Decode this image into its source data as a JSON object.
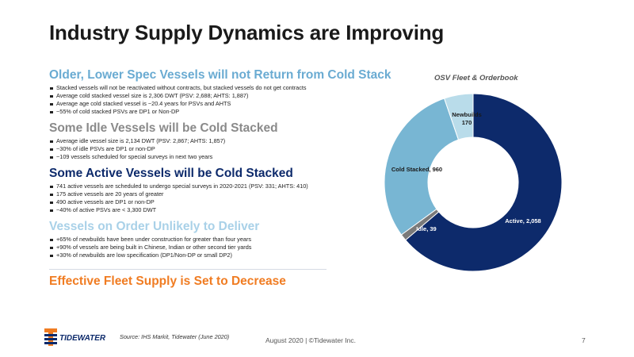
{
  "title": "Industry Supply Dynamics are Improving",
  "colors": {
    "navy": "#0d2a6b",
    "gray": "#808080",
    "orange": "#f07c22",
    "light_blue": "#8bc3d9",
    "cold_blue": "#78b6d3",
    "pale_blue": "#b9dcea",
    "idle_gray": "#7a7a7a"
  },
  "sections": [
    {
      "heading": "Older, Lower Spec Vessels will not Return from Cold Stack",
      "color": "#6aabd2",
      "bullets": [
        "Stacked vessels will not be reactivated without contracts, but stacked vessels do not get contracts",
        "Average cold stacked vessel size is 2,306 DWT (PSV: 2,688; AHTS: 1,887)",
        "Average age cold stacked vessel is ~20.4 years for PSVs and AHTS",
        "~55% of cold stacked PSVs are DP1 or Non-DP"
      ]
    },
    {
      "heading": "Some Idle Vessels will be Cold Stacked",
      "color": "#8a8a8a",
      "bullets": [
        "Average idle vessel size is 2,134 DWT (PSV: 2,867; AHTS: 1,857)",
        "~30% of idle PSVs are DP1 or non-DP",
        "~109 vessels scheduled for special surveys in next two years"
      ]
    },
    {
      "heading": "Some Active Vessels will be Cold Stacked",
      "color": "#0d2a6b",
      "bullets": [
        "741 active vessels are scheduled to undergo special surveys in 2020-2021 (PSV: 331; AHTS: 410)",
        "175 active vessels are 20 years of greater",
        "490 active vessels are DP1 or non-DP",
        "~40% of active PSVs are < 3,300 DWT"
      ]
    },
    {
      "heading": "Vessels on Order Unlikely to Deliver",
      "color": "#a9d1e8",
      "bullets": [
        "+65% of newbuilds have been under construction for greater than four years",
        "+90% of vessels are being built in Chinese, Indian or other second tier yards",
        "+30% of newbuilds are low specification (DP1/Non-DP or small DP2)"
      ]
    }
  ],
  "conclusion": "Effective Fleet Supply is Set to Decrease",
  "conclusion_color": "#f07c22",
  "chart_data": {
    "type": "pie",
    "title": "OSV Fleet & Orderbook",
    "categories": [
      "Active",
      "Idle",
      "Cold Stacked",
      "Newbuilds"
    ],
    "values": [
      2058,
      39,
      960,
      170
    ],
    "data_labels": [
      "Active, 2,058",
      "Idle, 39",
      "Cold Stacked, 960",
      "Newbuilds\n170"
    ],
    "colors": [
      "#0d2a6b",
      "#7a7a7a",
      "#78b6d3",
      "#b9dcea"
    ],
    "donut": true
  },
  "logo_text": "TIDEWATER",
  "source": "Source: IHS Markit, Tidewater (June 2020)",
  "footer": "August 2020 | ©Tidewater Inc.",
  "page_number": "7"
}
